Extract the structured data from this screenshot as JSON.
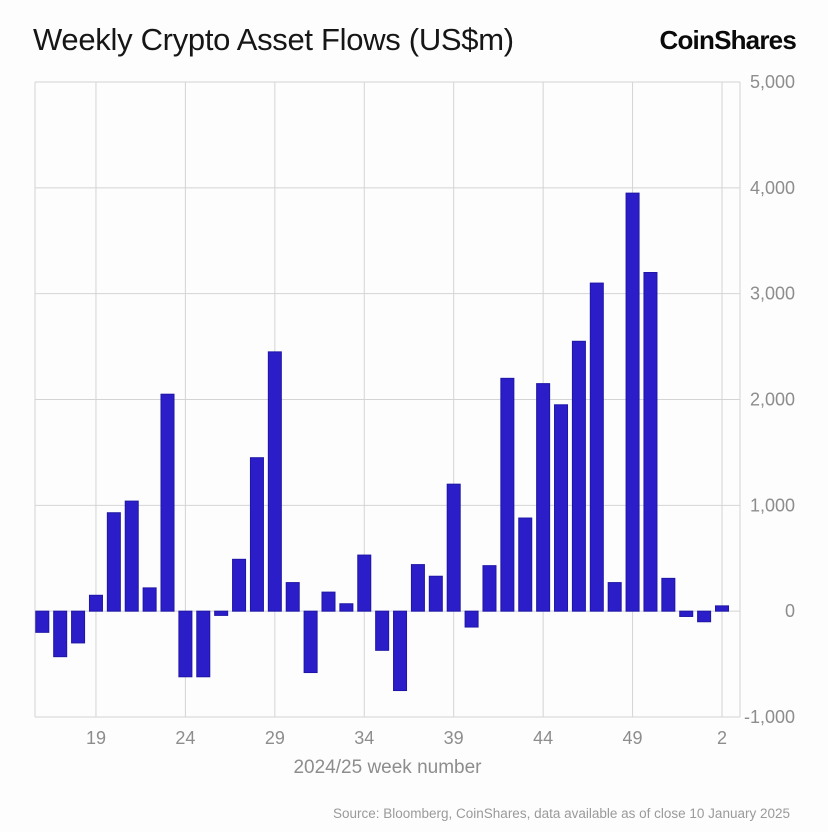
{
  "header": {
    "title": "Weekly Crypto Asset Flows (US$m)",
    "logo": "CoinShares"
  },
  "chart_data": {
    "type": "bar",
    "title": "Weekly Crypto Asset Flows (US$m)",
    "xlabel": "2024/25 week number",
    "ylabel": "",
    "x": [
      16,
      17,
      18,
      19,
      20,
      21,
      22,
      23,
      24,
      25,
      26,
      27,
      28,
      29,
      30,
      31,
      32,
      33,
      34,
      35,
      36,
      37,
      38,
      39,
      40,
      41,
      42,
      43,
      44,
      45,
      46,
      47,
      48,
      49,
      50,
      51,
      52,
      1,
      2
    ],
    "values": [
      -200,
      -430,
      -300,
      150,
      930,
      1040,
      220,
      2050,
      -620,
      -620,
      -40,
      490,
      1450,
      2450,
      270,
      -580,
      180,
      70,
      530,
      -370,
      -750,
      440,
      330,
      1200,
      -150,
      430,
      2200,
      880,
      2150,
      1950,
      2550,
      3100,
      270,
      3950,
      3200,
      310,
      -50,
      -100,
      50
    ],
    "x_ticks": [
      19,
      24,
      29,
      34,
      39,
      44,
      49,
      2
    ],
    "ylim": [
      -1000,
      5000
    ],
    "y_ticks": [
      5000,
      4000,
      3000,
      2000,
      1000,
      0,
      -1000
    ],
    "y_tick_labels": [
      "5,000",
      "4,000",
      "3,000",
      "2,000",
      "1,000",
      "0",
      "-1,000"
    ],
    "grid": true,
    "legend": "none",
    "bar_color": "#2b1ec9",
    "bar_edge_color": "#1e16a6",
    "grid_color": "#d4d4d4",
    "axis_label_color": "#8d8d8d"
  },
  "footer": {
    "source": "Source: Bloomberg, CoinShares, data available as of close 10 January 2025"
  }
}
